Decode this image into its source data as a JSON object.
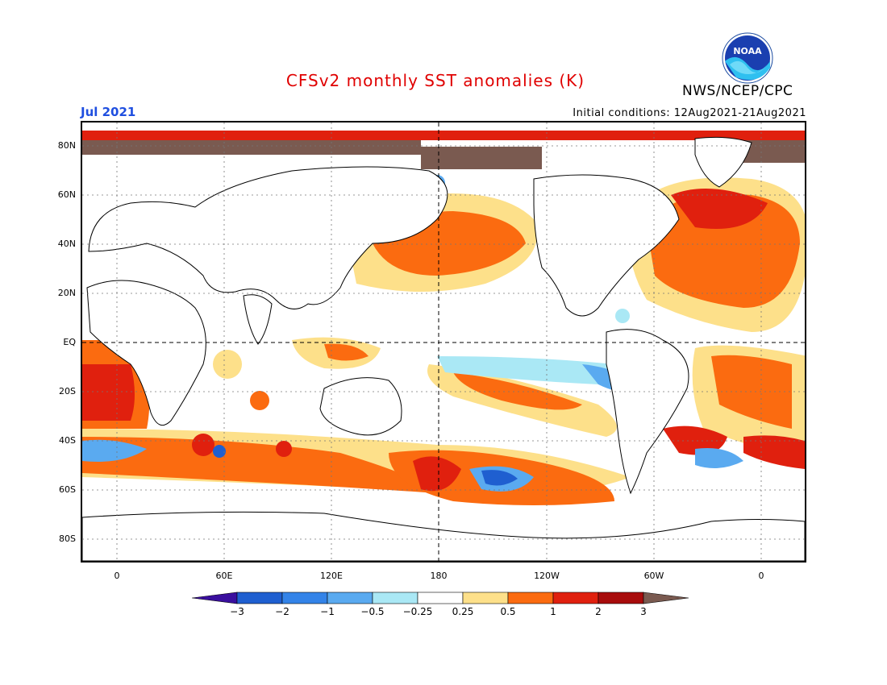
{
  "title": "CFSv2 monthly SST anomalies (K)",
  "organization": "NWS/NCEP/CPC",
  "logo_text": "NOAA",
  "period": "Jul 2021",
  "initial_conditions": "Initial conditions: 12Aug2021-21Aug2021",
  "colors": {
    "title": "#e00000",
    "period": "#1f4fe0",
    "land": "#ffffff",
    "coast": "#000000"
  },
  "lat_labels": [
    "80N",
    "60N",
    "40N",
    "20N",
    "EQ",
    "20S",
    "40S",
    "60S",
    "80S"
  ],
  "lon_labels": [
    "0",
    "60E",
    "120E",
    "180",
    "120W",
    "60W",
    "0"
  ],
  "colorbar": {
    "levels": [
      "-3",
      "-2",
      "-1",
      "-0.5",
      "-0.25",
      "0.25",
      "0.5",
      "1",
      "2",
      "3"
    ],
    "colors": [
      "#3a0f9e",
      "#1f5fd0",
      "#3383e8",
      "#5aaaf0",
      "#aae8f5",
      "#ffffff",
      "#fde08a",
      "#fb6b10",
      "#e0200e",
      "#a80c0c",
      "#7a5a50"
    ]
  },
  "chart_data": {
    "type": "heatmap",
    "title": "CFSv2 monthly SST anomalies (K)",
    "units": "K",
    "period": "Jul 2021",
    "projection": "global lat-lon, centered on 180",
    "lat_ticks": [
      "80N",
      "60N",
      "40N",
      "20N",
      "EQ",
      "20S",
      "40S",
      "60S",
      "80S"
    ],
    "lon_ticks": [
      "0",
      "60E",
      "120E",
      "180",
      "120W",
      "60W",
      "0"
    ],
    "color_levels": [
      -3,
      -2,
      -1,
      -0.5,
      -0.25,
      0.25,
      0.5,
      1,
      2,
      3
    ],
    "grid": true
  }
}
